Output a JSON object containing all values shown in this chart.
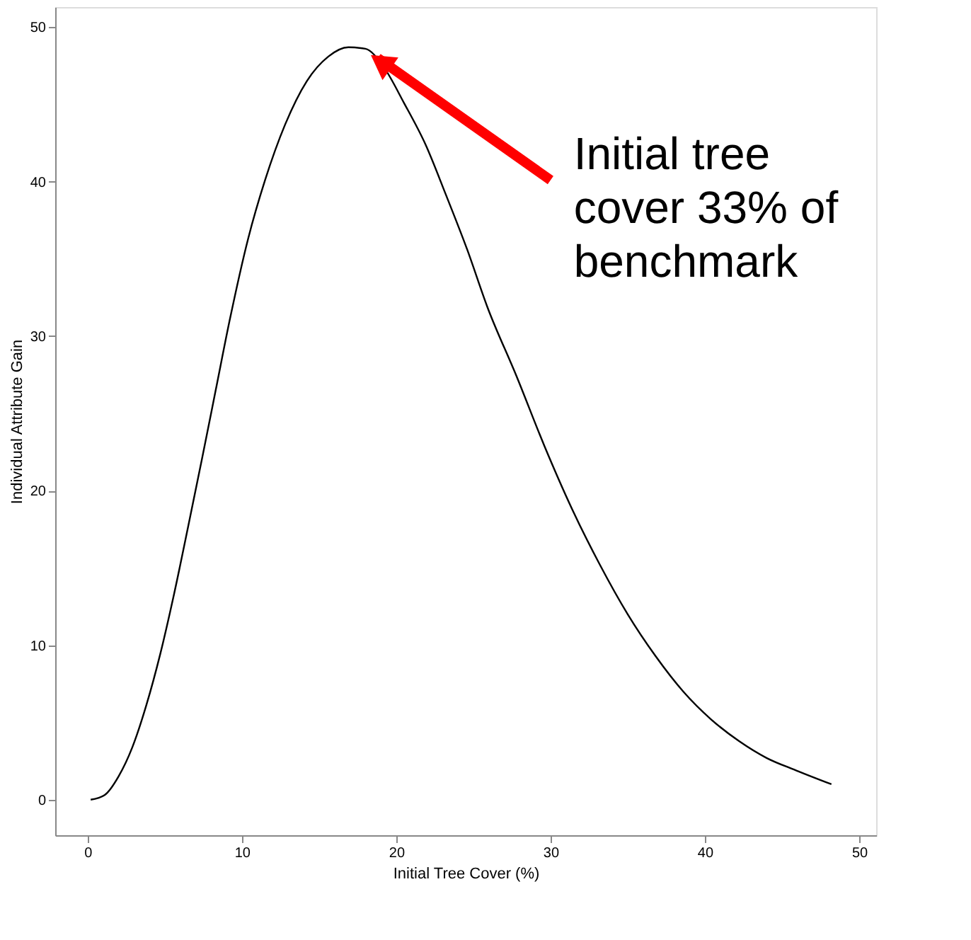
{
  "chart_data": {
    "type": "line",
    "xlabel": "Initial Tree Cover (%)",
    "ylabel": "Individual Attribute Gain",
    "x": [
      0.2,
      1.1,
      2,
      2.9,
      3.8,
      4.7,
      5.6,
      6.5,
      7.4,
      8.3,
      9.2,
      10.4,
      11.5,
      12.8,
      14.2,
      15.6,
      16.9,
      18,
      19.2,
      20.5,
      21.9,
      23.2,
      24.6,
      25.9,
      27.8,
      29.6,
      31.4,
      33.2,
      35,
      36.8,
      38.6,
      40.4,
      42.2,
      44,
      45.9,
      48.2
    ],
    "series": [
      {
        "color": "#000000",
        "values": [
          0,
          0.3,
          1.5,
          3.4,
          6.1,
          9.4,
          13.3,
          17.6,
          22,
          26.5,
          31,
          36.3,
          40.1,
          43.7,
          46.5,
          48.1,
          48.7,
          48.6,
          47.4,
          45.1,
          42.4,
          39.2,
          35.6,
          31.9,
          27.4,
          22.9,
          18.8,
          15.2,
          12,
          9.3,
          7,
          5.2,
          3.8,
          2.7,
          1.9,
          1
        ]
      }
    ],
    "xlim": [
      -2.1,
      51.1
    ],
    "ylim": [
      -2.3,
      51.3
    ],
    "xticks": [
      0,
      10,
      20,
      30,
      40,
      50
    ],
    "yticks": [
      0,
      10,
      20,
      30,
      40,
      50
    ],
    "grid": false,
    "marker": "none",
    "line_style": "solid",
    "annotations": [
      "Initial tree\ncover 33% of\nbenchmark"
    ]
  }
}
